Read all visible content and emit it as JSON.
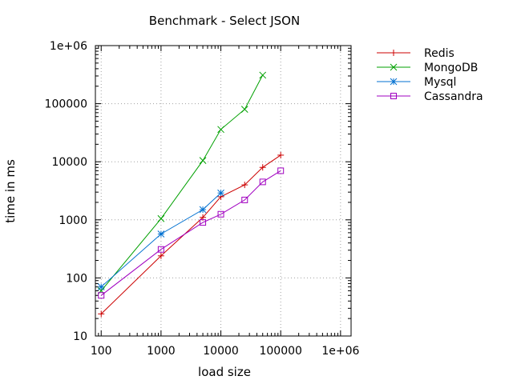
{
  "chart_data": {
    "type": "line",
    "title": "Benchmark - Select JSON",
    "xlabel": "load size",
    "ylabel": "time in ms",
    "xscale": "log",
    "yscale": "log",
    "xlim": [
      80,
      1500000
    ],
    "ylim": [
      10,
      1000000
    ],
    "xticks": [
      100,
      1000,
      10000,
      100000,
      1000000
    ],
    "xtick_labels": [
      "100",
      "1000",
      "10000",
      "100000",
      "1e+06"
    ],
    "yticks": [
      10,
      100,
      1000,
      10000,
      100000,
      1000000
    ],
    "ytick_labels": [
      "10",
      "100",
      "1000",
      "10000",
      "100000",
      "1e+06"
    ],
    "grid": true,
    "legend_position": "outside-top-right",
    "series": [
      {
        "name": "Redis",
        "color": "#cc0000",
        "marker": "plus",
        "x": [
          100,
          1000,
          5000,
          10000,
          25000,
          50000,
          100000
        ],
        "y": [
          24,
          240,
          1100,
          2500,
          4000,
          8000,
          13000
        ]
      },
      {
        "name": "MongoDB",
        "color": "#00a000",
        "marker": "cross",
        "x": [
          100,
          1000,
          5000,
          10000,
          25000,
          50000
        ],
        "y": [
          60,
          1050,
          10500,
          36000,
          80000,
          310000
        ]
      },
      {
        "name": "Mysql",
        "color": "#0070d0",
        "marker": "star",
        "x": [
          100,
          1000,
          5000,
          10000
        ],
        "y": [
          70,
          570,
          1500,
          2900
        ]
      },
      {
        "name": "Cassandra",
        "color": "#a000c0",
        "marker": "square",
        "x": [
          100,
          1000,
          5000,
          10000,
          25000,
          50000,
          100000
        ],
        "y": [
          50,
          310,
          900,
          1250,
          2200,
          4500,
          7000
        ]
      }
    ]
  }
}
